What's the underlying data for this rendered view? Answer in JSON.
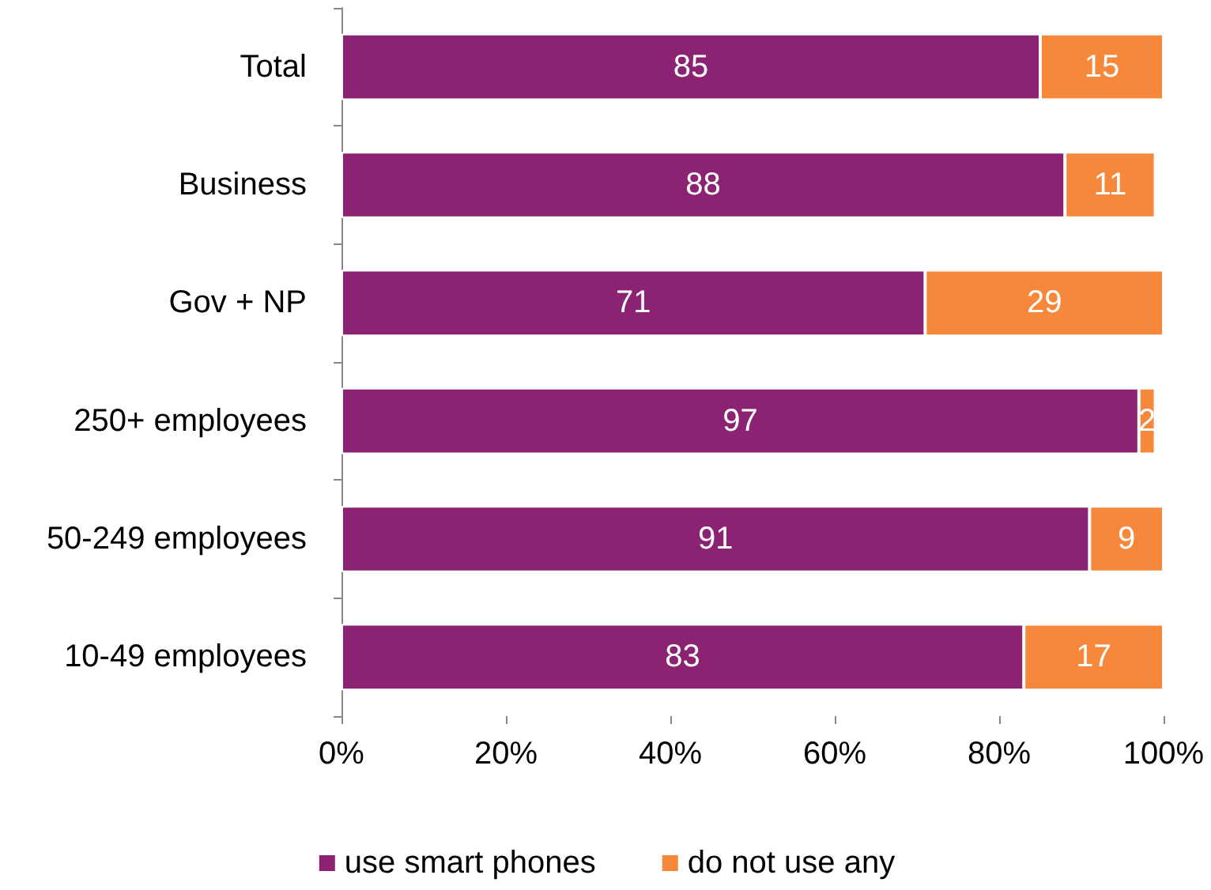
{
  "chart_data": {
    "type": "bar",
    "orientation": "horizontal",
    "stacked": true,
    "categories": [
      "Total",
      "Business",
      "Gov + NP",
      "250+ employees",
      "50-249 employees",
      "10-49 employees"
    ],
    "series": [
      {
        "name": "use smart phones",
        "color": "#8b2372",
        "values": [
          85,
          88,
          71,
          97,
          91,
          83
        ]
      },
      {
        "name": "do not use any",
        "color": "#f5883a",
        "values": [
          15,
          11,
          29,
          2,
          9,
          17
        ]
      }
    ],
    "xlim": [
      0,
      100
    ],
    "xticks": [
      {
        "value": 0,
        "label": "0%"
      },
      {
        "value": 20,
        "label": "20%"
      },
      {
        "value": 40,
        "label": "40%"
      },
      {
        "value": 60,
        "label": "60%"
      },
      {
        "value": 80,
        "label": "80%"
      },
      {
        "value": 100,
        "label": "100%"
      }
    ],
    "data_labels": true,
    "grid": false,
    "legend": "bottom"
  }
}
